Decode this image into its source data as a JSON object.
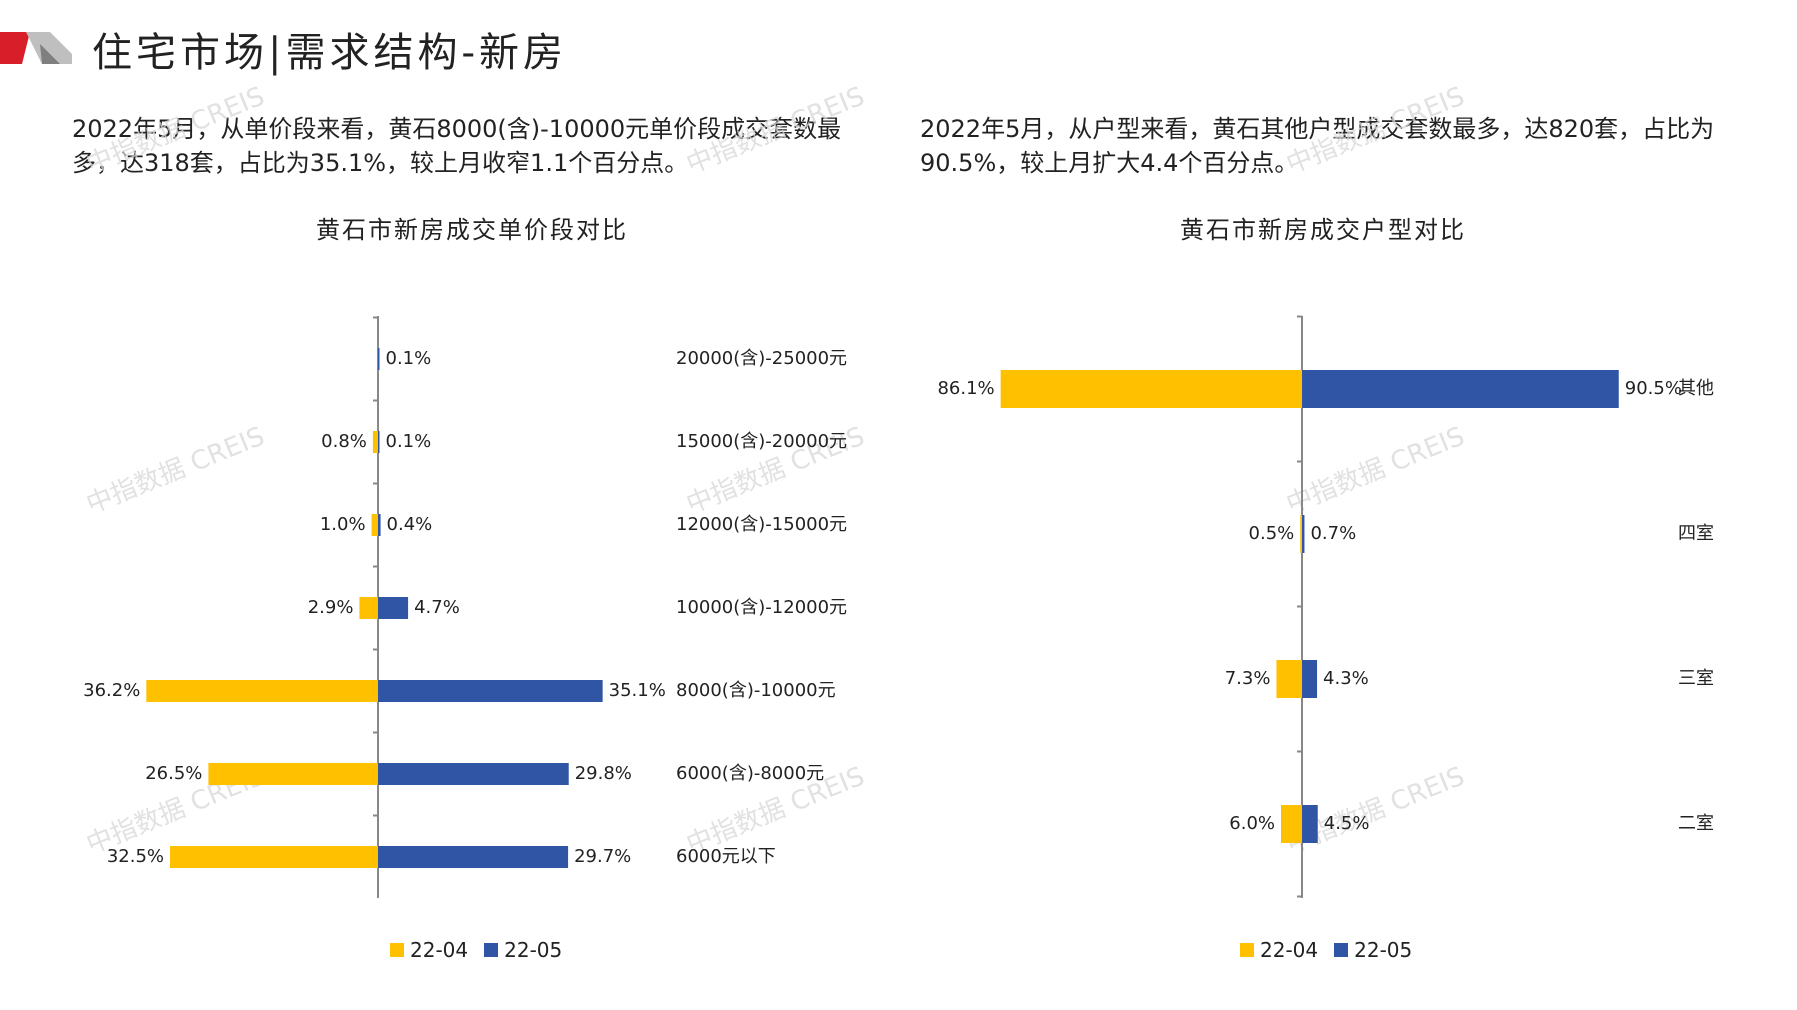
{
  "header": {
    "title": "住宅市场|需求结构-新房"
  },
  "descriptions": {
    "left": "2022年5月，从单价段来看，黄石8000(含)-10000元单价段成交套数最多，达318套，占比为35.1%，较上月收窄1.1个百分点。",
    "right": "2022年5月，从户型来看，黄石其他户型成交套数最多，达820套，占比为90.5%，较上月扩大4.4个百分点。"
  },
  "watermark": "中指数据 CREIS",
  "colors": {
    "series_a": "#FFC000",
    "series_b": "#2F55A4",
    "axis": "#888888"
  },
  "chart_data": [
    {
      "type": "bar",
      "orientation": "horizontal-butterfly",
      "title": "黄石市新房成交单价段对比",
      "categories": [
        "20000(含)-25000元",
        "15000(含)-20000元",
        "12000(含)-15000元",
        "10000(含)-12000元",
        "8000(含)-10000元",
        "6000(含)-8000元",
        "6000元以下"
      ],
      "series": [
        {
          "name": "22-04",
          "values": [
            0.0,
            0.8,
            1.0,
            2.9,
            36.2,
            26.5,
            32.5
          ],
          "labels": [
            "",
            "0.8%",
            "1.0%",
            "2.9%",
            "36.2%",
            "26.5%",
            "32.5%"
          ]
        },
        {
          "name": "22-05",
          "values": [
            0.1,
            0.1,
            0.4,
            4.7,
            35.1,
            29.8,
            29.7
          ],
          "labels": [
            "0.1%",
            "0.1%",
            "0.4%",
            "4.7%",
            "35.1%",
            "29.8%",
            "29.7%"
          ]
        }
      ],
      "legend": "bottom"
    },
    {
      "type": "bar",
      "orientation": "horizontal-butterfly",
      "title": "黄石市新房成交户型对比",
      "categories": [
        "其他",
        "四室",
        "三室",
        "二室"
      ],
      "series": [
        {
          "name": "22-04",
          "values": [
            86.1,
            0.5,
            7.3,
            6.0
          ],
          "labels": [
            "86.1%",
            "0.5%",
            "7.3%",
            "6.0%"
          ]
        },
        {
          "name": "22-05",
          "values": [
            90.5,
            0.7,
            4.3,
            4.5
          ],
          "labels": [
            "90.5%",
            "0.7%",
            "4.3%",
            "4.5%"
          ]
        }
      ],
      "legend": "bottom"
    }
  ]
}
